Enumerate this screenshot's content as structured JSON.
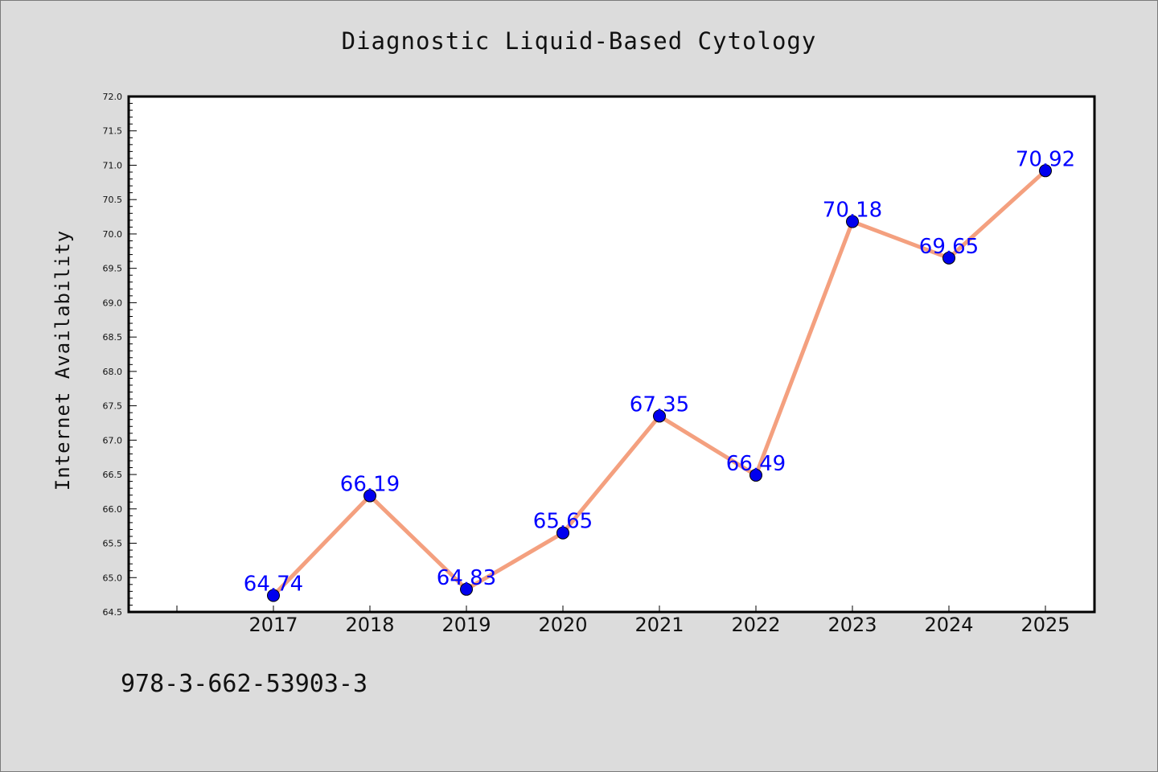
{
  "chart_data": {
    "type": "line",
    "title": "Diagnostic Liquid-Based Cytology",
    "xlabel": "",
    "ylabel": "Internet Availability",
    "categories": [
      "2017",
      "2018",
      "2019",
      "2020",
      "2021",
      "2022",
      "2023",
      "2024",
      "2025"
    ],
    "series": [
      {
        "values": [
          64.74,
          66.19,
          64.83,
          65.65,
          67.35,
          66.49,
          70.18,
          69.65,
          70.92
        ],
        "labels": [
          "64.74",
          "66.19",
          "64.83",
          "65.65",
          "67.35",
          "66.49",
          "70.18",
          "69.65",
          "70.92"
        ]
      }
    ],
    "ylim": [
      64.5,
      72.0
    ],
    "yticks": [
      "64.5",
      "65.0",
      "65.5",
      "66.0",
      "66.5",
      "67.0",
      "67.5",
      "68.0",
      "68.5",
      "69.0",
      "69.5",
      "70.0",
      "70.5",
      "71.0",
      "71.5",
      "72.0"
    ],
    "grid": false,
    "line_color": "#f4a07f",
    "marker_color": "#0000ee",
    "label_color": "#0000ff",
    "plot_background": "#ffffff",
    "page_background": "#dcdcdc"
  },
  "footer": {
    "id_text": "978-3-662-53903-3"
  }
}
